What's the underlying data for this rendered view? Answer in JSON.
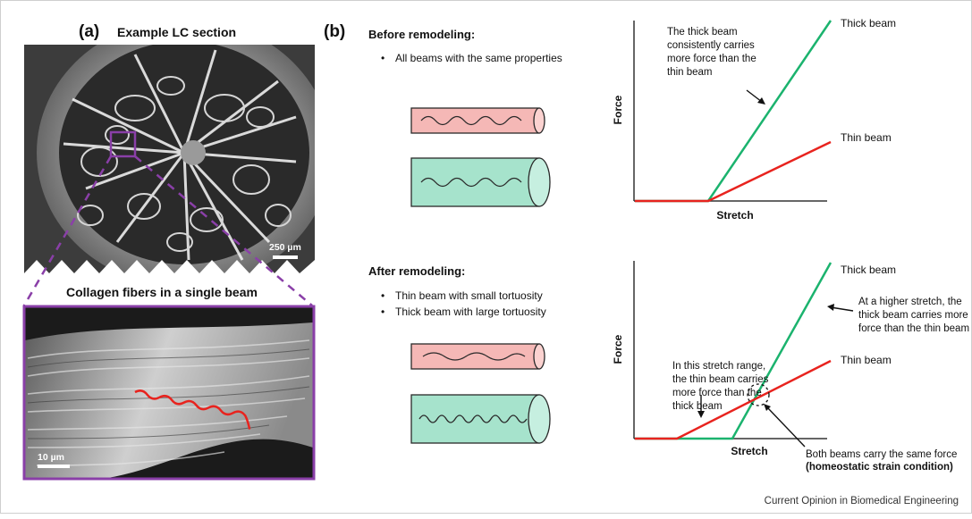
{
  "panel_a": {
    "letter": "(a)",
    "title": "Example LC section",
    "scale_bar_top": "250 µm",
    "inset_title": "Collagen fibers in a single beam",
    "scale_bar_bottom": "10 µm"
  },
  "panel_b": {
    "letter": "(b)",
    "before": {
      "heading": "Before remodeling:",
      "bullets": [
        "All beams with the same properties"
      ],
      "chart": {
        "xlabel": "Stretch",
        "ylabel": "Force",
        "series": [
          {
            "name": "Thick beam",
            "color": "#1bb36e"
          },
          {
            "name": "Thin beam",
            "color": "#e8231e"
          }
        ],
        "annotation": [
          "The thick beam",
          "consistently carries",
          "more force than the",
          "thin beam"
        ]
      }
    },
    "after": {
      "heading": "After remodeling:",
      "bullets": [
        "Thin beam with small tortuosity",
        "Thick beam with large tortuosity"
      ],
      "chart": {
        "xlabel": "Stretch",
        "ylabel": "Force",
        "series": [
          {
            "name": "Thick beam",
            "color": "#1bb36e"
          },
          {
            "name": "Thin beam",
            "color": "#e8231e"
          }
        ],
        "annotation_right": [
          "At a higher stretch, the",
          "thick beam carries more",
          "force than the thin beam"
        ],
        "annotation_left": [
          "In this stretch range,",
          "the thin beam carries",
          "more force than the",
          "thick beam"
        ],
        "annotation_bottom": "Both beams carry the same force",
        "annotation_bottom_bold": "(homeostatic strain condition)"
      }
    }
  },
  "credit": "Current Opinion in Biomedical Engineering",
  "colors": {
    "frame_purple": "#8a3fa8",
    "thin_fill": "#f5b8b6",
    "thick_fill": "#a6e3cc"
  }
}
